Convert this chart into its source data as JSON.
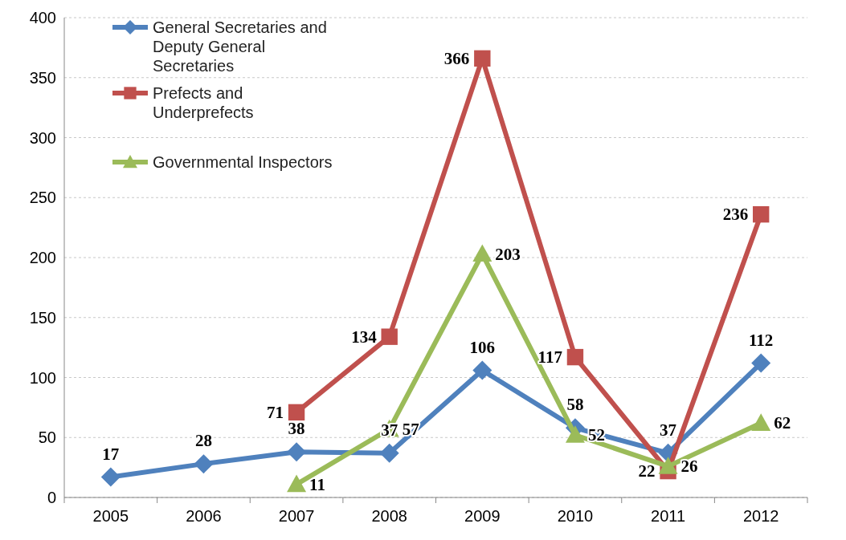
{
  "chart_data": {
    "type": "line",
    "categories": [
      "2005",
      "2006",
      "2007",
      "2008",
      "2009",
      "2010",
      "2011",
      "2012"
    ],
    "series": [
      {
        "name": "General Secretaries and Deputy General Secretaries",
        "color": "#4f81bd",
        "marker": "diamond",
        "values": [
          17,
          28,
          38,
          37,
          106,
          58,
          37,
          112
        ]
      },
      {
        "name": "Prefects and Underprefects",
        "color": "#c0504d",
        "marker": "square",
        "values": [
          null,
          null,
          71,
          134,
          366,
          117,
          22,
          236
        ]
      },
      {
        "name": "Governmental Inspectors",
        "color": "#9bbb59",
        "marker": "triangle",
        "values": [
          null,
          null,
          11,
          57,
          203,
          52,
          26,
          62
        ]
      }
    ],
    "ylim": [
      0,
      400
    ],
    "yticks": [
      0,
      50,
      100,
      150,
      200,
      250,
      300,
      350,
      400
    ],
    "grid": "y",
    "legend": "top left",
    "data_labels": true,
    "line_style": "solid"
  }
}
